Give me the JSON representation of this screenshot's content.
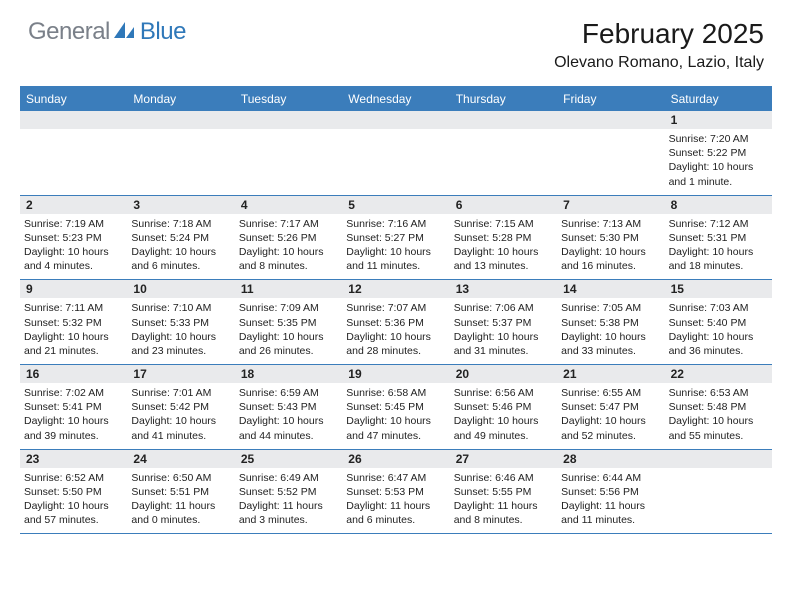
{
  "logo": {
    "text1": "General",
    "text2": "Blue"
  },
  "title": "February 2025",
  "location": "Olevano Romano, Lazio, Italy",
  "colors": {
    "header_bar": "#3b7dbb",
    "daynum_bg": "#e9eaec",
    "logo_gray": "#7a8089",
    "logo_blue": "#2f78b9",
    "text": "#1a1a1a",
    "white": "#ffffff"
  },
  "typography": {
    "title_fontsize": 28,
    "location_fontsize": 16,
    "dow_fontsize": 12,
    "daynum_fontsize": 12,
    "body_fontsize": 10.5
  },
  "layout": {
    "columns": 7,
    "rows": 5,
    "cell_min_height": 78
  },
  "days_of_week": [
    "Sunday",
    "Monday",
    "Tuesday",
    "Wednesday",
    "Thursday",
    "Friday",
    "Saturday"
  ],
  "weeks": [
    [
      {
        "n": "",
        "sunrise": "",
        "sunset": "",
        "daylight": ""
      },
      {
        "n": "",
        "sunrise": "",
        "sunset": "",
        "daylight": ""
      },
      {
        "n": "",
        "sunrise": "",
        "sunset": "",
        "daylight": ""
      },
      {
        "n": "",
        "sunrise": "",
        "sunset": "",
        "daylight": ""
      },
      {
        "n": "",
        "sunrise": "",
        "sunset": "",
        "daylight": ""
      },
      {
        "n": "",
        "sunrise": "",
        "sunset": "",
        "daylight": ""
      },
      {
        "n": "1",
        "sunrise": "Sunrise: 7:20 AM",
        "sunset": "Sunset: 5:22 PM",
        "daylight": "Daylight: 10 hours and 1 minute."
      }
    ],
    [
      {
        "n": "2",
        "sunrise": "Sunrise: 7:19 AM",
        "sunset": "Sunset: 5:23 PM",
        "daylight": "Daylight: 10 hours and 4 minutes."
      },
      {
        "n": "3",
        "sunrise": "Sunrise: 7:18 AM",
        "sunset": "Sunset: 5:24 PM",
        "daylight": "Daylight: 10 hours and 6 minutes."
      },
      {
        "n": "4",
        "sunrise": "Sunrise: 7:17 AM",
        "sunset": "Sunset: 5:26 PM",
        "daylight": "Daylight: 10 hours and 8 minutes."
      },
      {
        "n": "5",
        "sunrise": "Sunrise: 7:16 AM",
        "sunset": "Sunset: 5:27 PM",
        "daylight": "Daylight: 10 hours and 11 minutes."
      },
      {
        "n": "6",
        "sunrise": "Sunrise: 7:15 AM",
        "sunset": "Sunset: 5:28 PM",
        "daylight": "Daylight: 10 hours and 13 minutes."
      },
      {
        "n": "7",
        "sunrise": "Sunrise: 7:13 AM",
        "sunset": "Sunset: 5:30 PM",
        "daylight": "Daylight: 10 hours and 16 minutes."
      },
      {
        "n": "8",
        "sunrise": "Sunrise: 7:12 AM",
        "sunset": "Sunset: 5:31 PM",
        "daylight": "Daylight: 10 hours and 18 minutes."
      }
    ],
    [
      {
        "n": "9",
        "sunrise": "Sunrise: 7:11 AM",
        "sunset": "Sunset: 5:32 PM",
        "daylight": "Daylight: 10 hours and 21 minutes."
      },
      {
        "n": "10",
        "sunrise": "Sunrise: 7:10 AM",
        "sunset": "Sunset: 5:33 PM",
        "daylight": "Daylight: 10 hours and 23 minutes."
      },
      {
        "n": "11",
        "sunrise": "Sunrise: 7:09 AM",
        "sunset": "Sunset: 5:35 PM",
        "daylight": "Daylight: 10 hours and 26 minutes."
      },
      {
        "n": "12",
        "sunrise": "Sunrise: 7:07 AM",
        "sunset": "Sunset: 5:36 PM",
        "daylight": "Daylight: 10 hours and 28 minutes."
      },
      {
        "n": "13",
        "sunrise": "Sunrise: 7:06 AM",
        "sunset": "Sunset: 5:37 PM",
        "daylight": "Daylight: 10 hours and 31 minutes."
      },
      {
        "n": "14",
        "sunrise": "Sunrise: 7:05 AM",
        "sunset": "Sunset: 5:38 PM",
        "daylight": "Daylight: 10 hours and 33 minutes."
      },
      {
        "n": "15",
        "sunrise": "Sunrise: 7:03 AM",
        "sunset": "Sunset: 5:40 PM",
        "daylight": "Daylight: 10 hours and 36 minutes."
      }
    ],
    [
      {
        "n": "16",
        "sunrise": "Sunrise: 7:02 AM",
        "sunset": "Sunset: 5:41 PM",
        "daylight": "Daylight: 10 hours and 39 minutes."
      },
      {
        "n": "17",
        "sunrise": "Sunrise: 7:01 AM",
        "sunset": "Sunset: 5:42 PM",
        "daylight": "Daylight: 10 hours and 41 minutes."
      },
      {
        "n": "18",
        "sunrise": "Sunrise: 6:59 AM",
        "sunset": "Sunset: 5:43 PM",
        "daylight": "Daylight: 10 hours and 44 minutes."
      },
      {
        "n": "19",
        "sunrise": "Sunrise: 6:58 AM",
        "sunset": "Sunset: 5:45 PM",
        "daylight": "Daylight: 10 hours and 47 minutes."
      },
      {
        "n": "20",
        "sunrise": "Sunrise: 6:56 AM",
        "sunset": "Sunset: 5:46 PM",
        "daylight": "Daylight: 10 hours and 49 minutes."
      },
      {
        "n": "21",
        "sunrise": "Sunrise: 6:55 AM",
        "sunset": "Sunset: 5:47 PM",
        "daylight": "Daylight: 10 hours and 52 minutes."
      },
      {
        "n": "22",
        "sunrise": "Sunrise: 6:53 AM",
        "sunset": "Sunset: 5:48 PM",
        "daylight": "Daylight: 10 hours and 55 minutes."
      }
    ],
    [
      {
        "n": "23",
        "sunrise": "Sunrise: 6:52 AM",
        "sunset": "Sunset: 5:50 PM",
        "daylight": "Daylight: 10 hours and 57 minutes."
      },
      {
        "n": "24",
        "sunrise": "Sunrise: 6:50 AM",
        "sunset": "Sunset: 5:51 PM",
        "daylight": "Daylight: 11 hours and 0 minutes."
      },
      {
        "n": "25",
        "sunrise": "Sunrise: 6:49 AM",
        "sunset": "Sunset: 5:52 PM",
        "daylight": "Daylight: 11 hours and 3 minutes."
      },
      {
        "n": "26",
        "sunrise": "Sunrise: 6:47 AM",
        "sunset": "Sunset: 5:53 PM",
        "daylight": "Daylight: 11 hours and 6 minutes."
      },
      {
        "n": "27",
        "sunrise": "Sunrise: 6:46 AM",
        "sunset": "Sunset: 5:55 PM",
        "daylight": "Daylight: 11 hours and 8 minutes."
      },
      {
        "n": "28",
        "sunrise": "Sunrise: 6:44 AM",
        "sunset": "Sunset: 5:56 PM",
        "daylight": "Daylight: 11 hours and 11 minutes."
      },
      {
        "n": "",
        "sunrise": "",
        "sunset": "",
        "daylight": ""
      }
    ]
  ]
}
